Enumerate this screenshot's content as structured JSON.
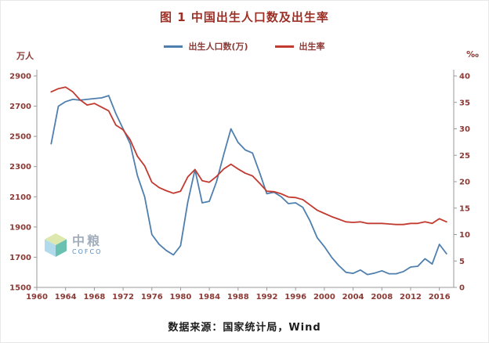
{
  "figure": {
    "title": "图 1 中国出生人口数及出生率",
    "source": "数据来源：国家统计局，Wind",
    "left_unit": "万人",
    "right_unit": "‰"
  },
  "watermark": {
    "name": "中粮",
    "subname": "COFCO"
  },
  "colors": {
    "title_text": "#9c2f26",
    "tick_text": "#8b3a36",
    "axis_line": "#999999",
    "series_population": "#4f7fae",
    "series_rate": "#c23a30"
  },
  "chart_data": {
    "type": "line",
    "title": "图 1 中国出生人口数及出生率",
    "grid": false,
    "legend_position": "top",
    "xlim": [
      1960,
      2018
    ],
    "x_ticks": [
      1960,
      1964,
      1968,
      1972,
      1976,
      1980,
      1984,
      1988,
      1992,
      1996,
      2000,
      2004,
      2008,
      2012,
      2016
    ],
    "left_axis": {
      "label": "万人",
      "lim": [
        1500,
        2900
      ],
      "ticks": [
        1500,
        1700,
        1900,
        2100,
        2300,
        2500,
        2700,
        2900
      ]
    },
    "right_axis": {
      "label": "‰",
      "lim": [
        0,
        40
      ],
      "ticks": [
        0,
        5,
        10,
        15,
        20,
        25,
        30,
        35,
        40
      ]
    },
    "x": [
      1962,
      1963,
      1964,
      1965,
      1966,
      1967,
      1968,
      1969,
      1970,
      1971,
      1972,
      1973,
      1974,
      1975,
      1976,
      1977,
      1978,
      1979,
      1980,
      1981,
      1982,
      1983,
      1984,
      1985,
      1986,
      1987,
      1988,
      1989,
      1990,
      1991,
      1992,
      1993,
      1994,
      1995,
      1996,
      1997,
      1998,
      1999,
      2000,
      2001,
      2002,
      2003,
      2004,
      2005,
      2006,
      2007,
      2008,
      2009,
      2010,
      2011,
      2012,
      2013,
      2014,
      2015,
      2016,
      2017
    ],
    "series": [
      {
        "name": "出生人口数(万)",
        "axis": "left",
        "color": "#4f7fae",
        "values": [
          2451,
          2700,
          2730,
          2745,
          2740,
          2745,
          2750,
          2755,
          2770,
          2650,
          2550,
          2450,
          2240,
          2100,
          1850,
          1786,
          1745,
          1715,
          1776,
          2064,
          2280,
          2060,
          2070,
          2200,
          2380,
          2550,
          2460,
          2410,
          2390,
          2260,
          2120,
          2130,
          2100,
          2055,
          2060,
          2030,
          1940,
          1830,
          1770,
          1700,
          1645,
          1600,
          1593,
          1615,
          1585,
          1595,
          1610,
          1590,
          1590,
          1605,
          1635,
          1640,
          1690,
          1655,
          1785,
          1723
        ]
      },
      {
        "name": "出生率",
        "axis": "right",
        "color": "#c23a30",
        "values": [
          37.0,
          37.6,
          37.9,
          37.0,
          35.5,
          34.5,
          34.8,
          34.1,
          33.4,
          30.7,
          29.8,
          27.9,
          24.8,
          23.0,
          19.9,
          18.9,
          18.3,
          17.8,
          18.2,
          20.9,
          22.3,
          20.2,
          19.9,
          21.0,
          22.4,
          23.3,
          22.4,
          21.6,
          21.1,
          19.7,
          18.2,
          18.1,
          17.7,
          17.1,
          17.0,
          16.6,
          15.6,
          14.6,
          14.0,
          13.4,
          12.9,
          12.4,
          12.3,
          12.4,
          12.1,
          12.1,
          12.1,
          12.0,
          11.9,
          11.9,
          12.1,
          12.1,
          12.4,
          12.1,
          13.0,
          12.4
        ]
      }
    ]
  }
}
